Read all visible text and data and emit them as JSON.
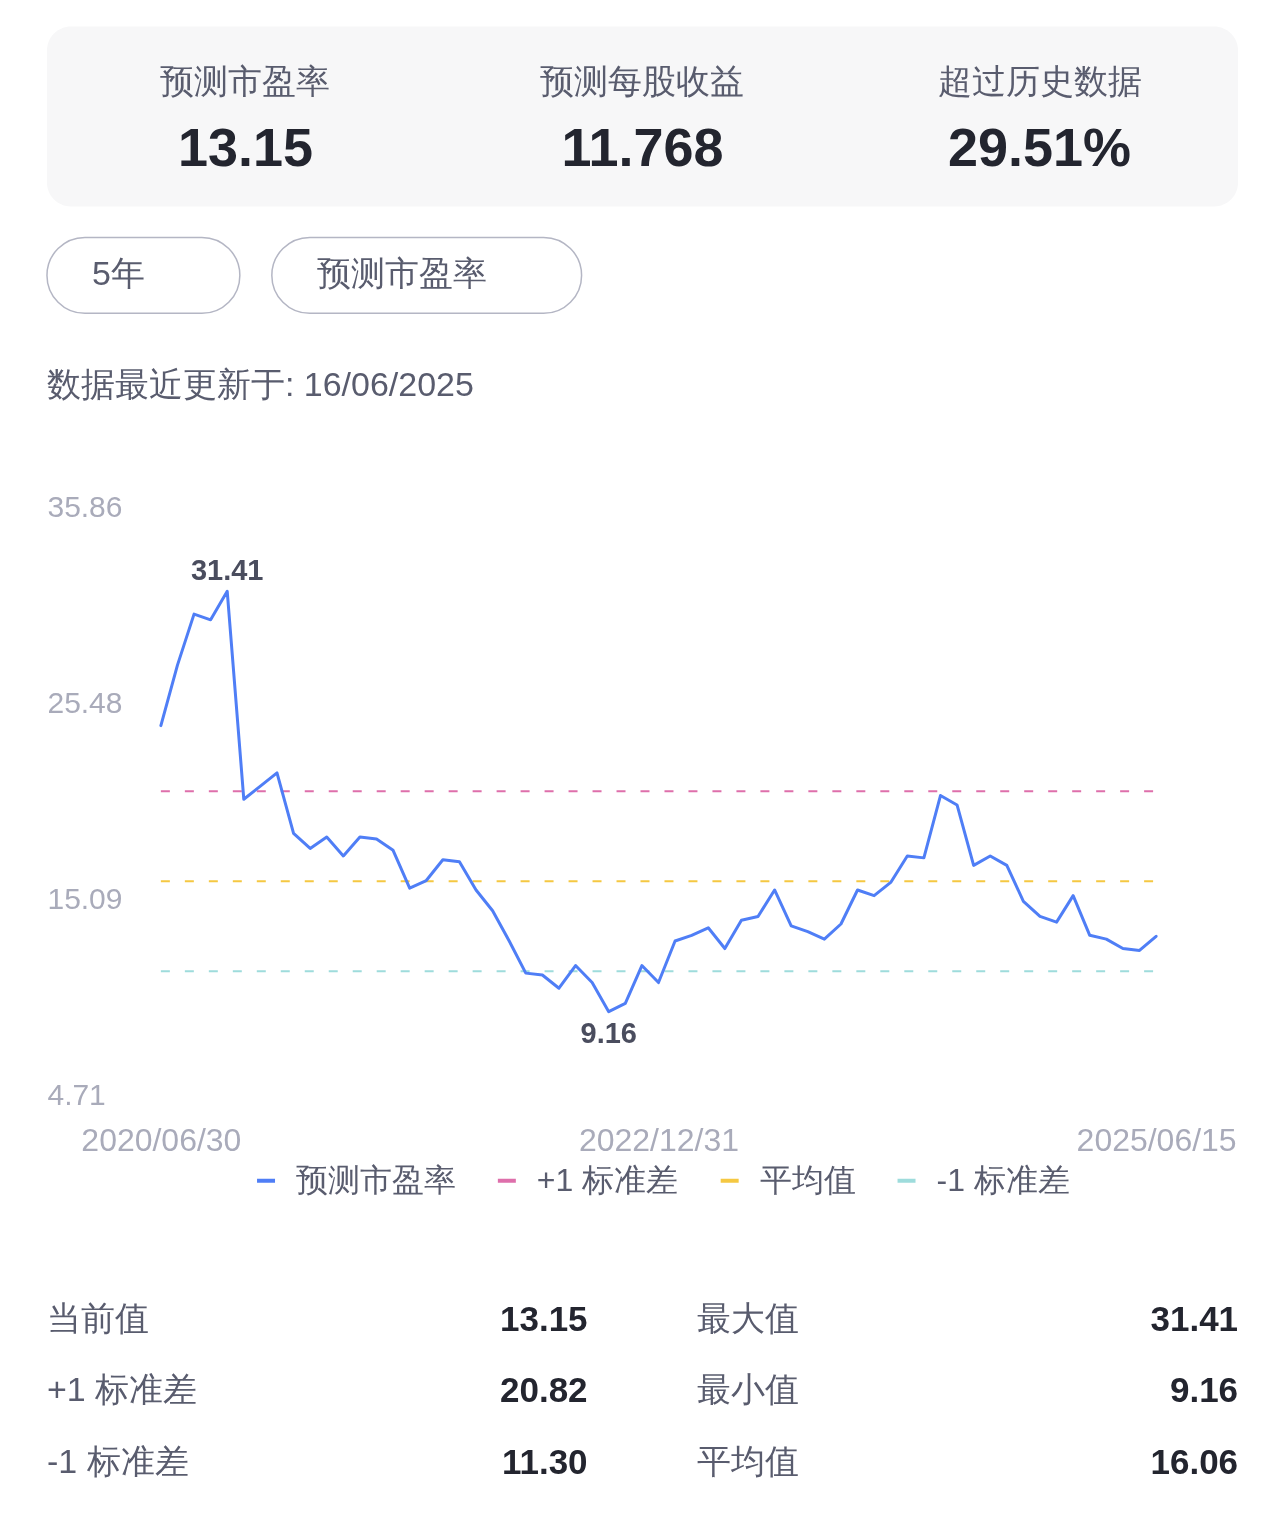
{
  "chart_data": [
    {
      "type": "other",
      "annotations": [
        "预测市盈率",
        "13.15",
        "预测每股收益",
        "11.768",
        "超过历史数据",
        "29.51%"
      ]
    },
    {
      "type": "other",
      "annotations": [
        "5年",
        "预测市盈率"
      ]
    },
    {
      "type": "line",
      "annotations": [
        "数据最近更新于: 16/06/2025"
      ],
      "categories": [
        "2020/06/30",
        null,
        null,
        null,
        null,
        null,
        null,
        null,
        null,
        null,
        null,
        null,
        null,
        null,
        null,
        null,
        null,
        null,
        null,
        null,
        null,
        null,
        null,
        null,
        null,
        null,
        null,
        null,
        null,
        null,
        "2022/12/31",
        null,
        null,
        null,
        null,
        null,
        null,
        null,
        null,
        null,
        null,
        null,
        null,
        null,
        null,
        null,
        null,
        null,
        null,
        null,
        null,
        null,
        null,
        null,
        null,
        null,
        null,
        null,
        null,
        null,
        "2025/06/15"
      ],
      "series": [
        {
          "name": "预测市盈率",
          "color": "#4f7ef6",
          "values": [
            24.3,
            27.5,
            30.2,
            29.9,
            31.41,
            20.4,
            21.1,
            21.8,
            18.6,
            17.8,
            18.4,
            17.4,
            18.4,
            18.3,
            17.7,
            15.7,
            16.1,
            17.2,
            17.1,
            15.6,
            14.5,
            12.9,
            11.2,
            11.1,
            10.4,
            11.6,
            10.7,
            9.16,
            9.6,
            11.6,
            10.7,
            12.9,
            13.2,
            13.6,
            12.5,
            14.0,
            14.2,
            15.6,
            13.7,
            13.4,
            13.0,
            13.8,
            15.6,
            15.3,
            16.0,
            17.4,
            17.3,
            20.6,
            20.1,
            16.9,
            17.4,
            16.9,
            15.0,
            14.2,
            13.9,
            15.3,
            13.2,
            13.0,
            12.5,
            12.4,
            13.15
          ],
          "value_labels": [
            null,
            null,
            null,
            null,
            "31.41",
            null,
            null,
            null,
            null,
            null,
            null,
            null,
            null,
            null,
            null,
            null,
            null,
            null,
            null,
            null,
            null,
            null,
            null,
            null,
            null,
            null,
            null,
            "9.16",
            null,
            null,
            null,
            null,
            null,
            null,
            null,
            null,
            null,
            null,
            null,
            null,
            null,
            null,
            null,
            null,
            null,
            null,
            null,
            null,
            null,
            null,
            null,
            null,
            null,
            null,
            null,
            null,
            null,
            null,
            null,
            null,
            null
          ]
        }
      ],
      "ylim": [
        4.71,
        35.86
      ],
      "yticks": [
        4.71,
        15.09,
        25.48,
        35.86
      ],
      "ref_lines": [
        {
          "axis": "y",
          "value": 20.82,
          "label": "+1 标准差",
          "color": "#de6fab",
          "line_style": "dashed"
        },
        {
          "axis": "y",
          "value": 16.06,
          "label": "平均值",
          "color": "#f5c842",
          "line_style": "dashed"
        },
        {
          "axis": "y",
          "value": 11.3,
          "label": "-1 标准差",
          "color": "#9edcdc",
          "line_style": "dashed"
        }
      ],
      "legend": "bottom"
    },
    {
      "type": "other",
      "annotations": [
        "当前值",
        "13.15",
        "最大值",
        "31.41",
        "+1 标准差",
        "20.82",
        "最小值",
        "9.16",
        "-1 标准差",
        "11.30",
        "平均值",
        "16.06"
      ]
    }
  ]
}
